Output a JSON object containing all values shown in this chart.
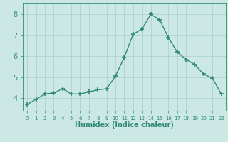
{
  "x": [
    0,
    1,
    2,
    3,
    4,
    5,
    6,
    7,
    8,
    9,
    10,
    11,
    12,
    13,
    14,
    15,
    16,
    17,
    18,
    19,
    20,
    21,
    22
  ],
  "y": [
    3.7,
    3.95,
    4.2,
    4.25,
    4.45,
    4.2,
    4.2,
    4.3,
    4.4,
    4.45,
    5.05,
    5.95,
    7.05,
    7.3,
    8.0,
    7.75,
    6.9,
    6.2,
    5.85,
    5.6,
    5.15,
    4.95,
    4.2
  ],
  "line_color": "#2e8b72",
  "marker": "+",
  "marker_size": 4,
  "marker_lw": 1.2,
  "bg_color": "#cce8e4",
  "grid_color": "#aaceca",
  "axis_color": "#2e8b72",
  "tick_color": "#2e8b72",
  "xlabel": "Humidex (Indice chaleur)",
  "xlabel_fontsize": 7,
  "ylabel_ticks": [
    4,
    5,
    6,
    7,
    8
  ],
  "ytick_fontsize": 7,
  "xtick_labels": [
    "0",
    "1",
    "2",
    "3",
    "4",
    "5",
    "6",
    "7",
    "8",
    "9",
    "10",
    "11",
    "12",
    "13",
    "14",
    "15",
    "16",
    "17",
    "18",
    "19",
    "20",
    "21",
    "22"
  ],
  "xtick_fontsize": 5,
  "ylim": [
    3.4,
    8.55
  ],
  "xlim": [
    -0.5,
    22.5
  ],
  "line_width": 1.0
}
